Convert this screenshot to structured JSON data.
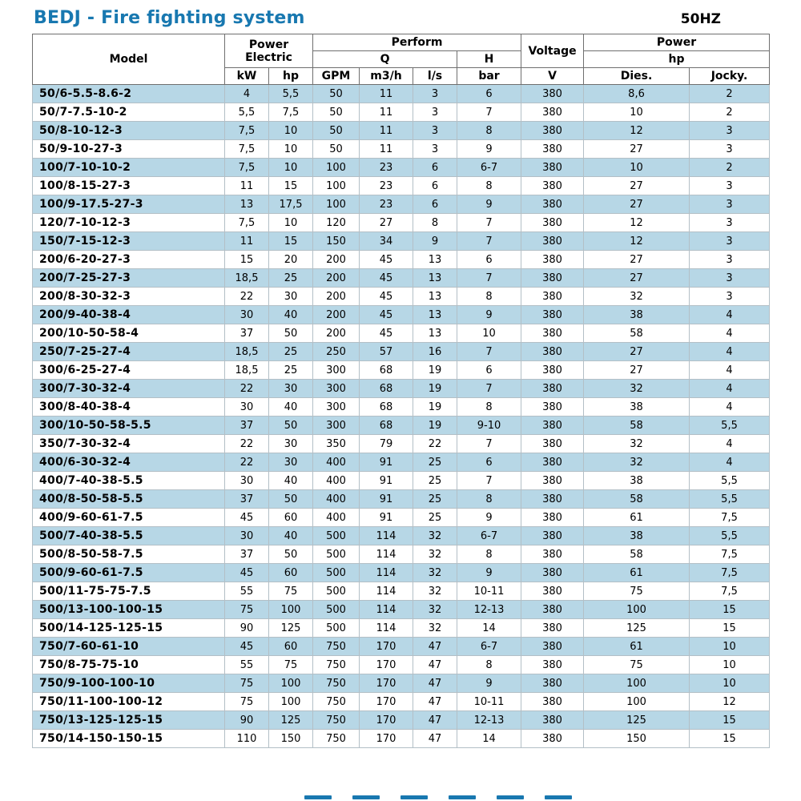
{
  "page": {
    "title": "BEDJ - Fire fighting system",
    "frequency": "50HZ"
  },
  "colors": {
    "title_blue": "#1878b0",
    "row_alt_blue": "#b7d7e6"
  },
  "table": {
    "header": {
      "model": "Model",
      "power_electric_line1": "Power",
      "power_electric_line2": "Electric",
      "perform": "Perform",
      "q": "Q",
      "h": "H",
      "voltage": "Voltage",
      "power2": "Power",
      "hp_group": "hp",
      "kw": "kW",
      "hp": "hp",
      "gpm": "GPM",
      "m3h": "m3/h",
      "ls": "l/s",
      "bar": "bar",
      "v": "V",
      "dies": "Dies.",
      "jocky": "Jocky."
    },
    "rows": [
      [
        "50/6-5.5-8.6-2",
        "4",
        "5,5",
        "50",
        "11",
        "3",
        "6",
        "380",
        "8,6",
        "2"
      ],
      [
        "50/7-7.5-10-2",
        "5,5",
        "7,5",
        "50",
        "11",
        "3",
        "7",
        "380",
        "10",
        "2"
      ],
      [
        "50/8-10-12-3",
        "7,5",
        "10",
        "50",
        "11",
        "3",
        "8",
        "380",
        "12",
        "3"
      ],
      [
        "50/9-10-27-3",
        "7,5",
        "10",
        "50",
        "11",
        "3",
        "9",
        "380",
        "27",
        "3"
      ],
      [
        "100/7-10-10-2",
        "7,5",
        "10",
        "100",
        "23",
        "6",
        "6-7",
        "380",
        "10",
        "2"
      ],
      [
        "100/8-15-27-3",
        "11",
        "15",
        "100",
        "23",
        "6",
        "8",
        "380",
        "27",
        "3"
      ],
      [
        "100/9-17.5-27-3",
        "13",
        "17,5",
        "100",
        "23",
        "6",
        "9",
        "380",
        "27",
        "3"
      ],
      [
        "120/7-10-12-3",
        "7,5",
        "10",
        "120",
        "27",
        "8",
        "7",
        "380",
        "12",
        "3"
      ],
      [
        "150/7-15-12-3",
        "11",
        "15",
        "150",
        "34",
        "9",
        "7",
        "380",
        "12",
        "3"
      ],
      [
        "200/6-20-27-3",
        "15",
        "20",
        "200",
        "45",
        "13",
        "6",
        "380",
        "27",
        "3"
      ],
      [
        "200/7-25-27-3",
        "18,5",
        "25",
        "200",
        "45",
        "13",
        "7",
        "380",
        "27",
        "3"
      ],
      [
        "200/8-30-32-3",
        "22",
        "30",
        "200",
        "45",
        "13",
        "8",
        "380",
        "32",
        "3"
      ],
      [
        "200/9-40-38-4",
        "30",
        "40",
        "200",
        "45",
        "13",
        "9",
        "380",
        "38",
        "4"
      ],
      [
        "200/10-50-58-4",
        "37",
        "50",
        "200",
        "45",
        "13",
        "10",
        "380",
        "58",
        "4"
      ],
      [
        "250/7-25-27-4",
        "18,5",
        "25",
        "250",
        "57",
        "16",
        "7",
        "380",
        "27",
        "4"
      ],
      [
        "300/6-25-27-4",
        "18,5",
        "25",
        "300",
        "68",
        "19",
        "6",
        "380",
        "27",
        "4"
      ],
      [
        "300/7-30-32-4",
        "22",
        "30",
        "300",
        "68",
        "19",
        "7",
        "380",
        "32",
        "4"
      ],
      [
        "300/8-40-38-4",
        "30",
        "40",
        "300",
        "68",
        "19",
        "8",
        "380",
        "38",
        "4"
      ],
      [
        "300/10-50-58-5.5",
        "37",
        "50",
        "300",
        "68",
        "19",
        "9-10",
        "380",
        "58",
        "5,5"
      ],
      [
        "350/7-30-32-4",
        "22",
        "30",
        "350",
        "79",
        "22",
        "7",
        "380",
        "32",
        "4"
      ],
      [
        "400/6-30-32-4",
        "22",
        "30",
        "400",
        "91",
        "25",
        "6",
        "380",
        "32",
        "4"
      ],
      [
        "400/7-40-38-5.5",
        "30",
        "40",
        "400",
        "91",
        "25",
        "7",
        "380",
        "38",
        "5,5"
      ],
      [
        "400/8-50-58-5.5",
        "37",
        "50",
        "400",
        "91",
        "25",
        "8",
        "380",
        "58",
        "5,5"
      ],
      [
        "400/9-60-61-7.5",
        "45",
        "60",
        "400",
        "91",
        "25",
        "9",
        "380",
        "61",
        "7,5"
      ],
      [
        "500/7-40-38-5.5",
        "30",
        "40",
        "500",
        "114",
        "32",
        "6-7",
        "380",
        "38",
        "5,5"
      ],
      [
        "500/8-50-58-7.5",
        "37",
        "50",
        "500",
        "114",
        "32",
        "8",
        "380",
        "58",
        "7,5"
      ],
      [
        "500/9-60-61-7.5",
        "45",
        "60",
        "500",
        "114",
        "32",
        "9",
        "380",
        "61",
        "7,5"
      ],
      [
        "500/11-75-75-7.5",
        "55",
        "75",
        "500",
        "114",
        "32",
        "10-11",
        "380",
        "75",
        "7,5"
      ],
      [
        "500/13-100-100-15",
        "75",
        "100",
        "500",
        "114",
        "32",
        "12-13",
        "380",
        "100",
        "15"
      ],
      [
        "500/14-125-125-15",
        "90",
        "125",
        "500",
        "114",
        "32",
        "14",
        "380",
        "125",
        "15"
      ],
      [
        "750/7-60-61-10",
        "45",
        "60",
        "750",
        "170",
        "47",
        "6-7",
        "380",
        "61",
        "10"
      ],
      [
        "750/8-75-75-10",
        "55",
        "75",
        "750",
        "170",
        "47",
        "8",
        "380",
        "75",
        "10"
      ],
      [
        "750/9-100-100-10",
        "75",
        "100",
        "750",
        "170",
        "47",
        "9",
        "380",
        "100",
        "10"
      ],
      [
        "750/11-100-100-12",
        "75",
        "100",
        "750",
        "170",
        "47",
        "10-11",
        "380",
        "100",
        "12"
      ],
      [
        "750/13-125-125-15",
        "90",
        "125",
        "750",
        "170",
        "47",
        "12-13",
        "380",
        "125",
        "15"
      ],
      [
        "750/14-150-150-15",
        "110",
        "150",
        "750",
        "170",
        "47",
        "14",
        "380",
        "150",
        "15"
      ]
    ]
  }
}
